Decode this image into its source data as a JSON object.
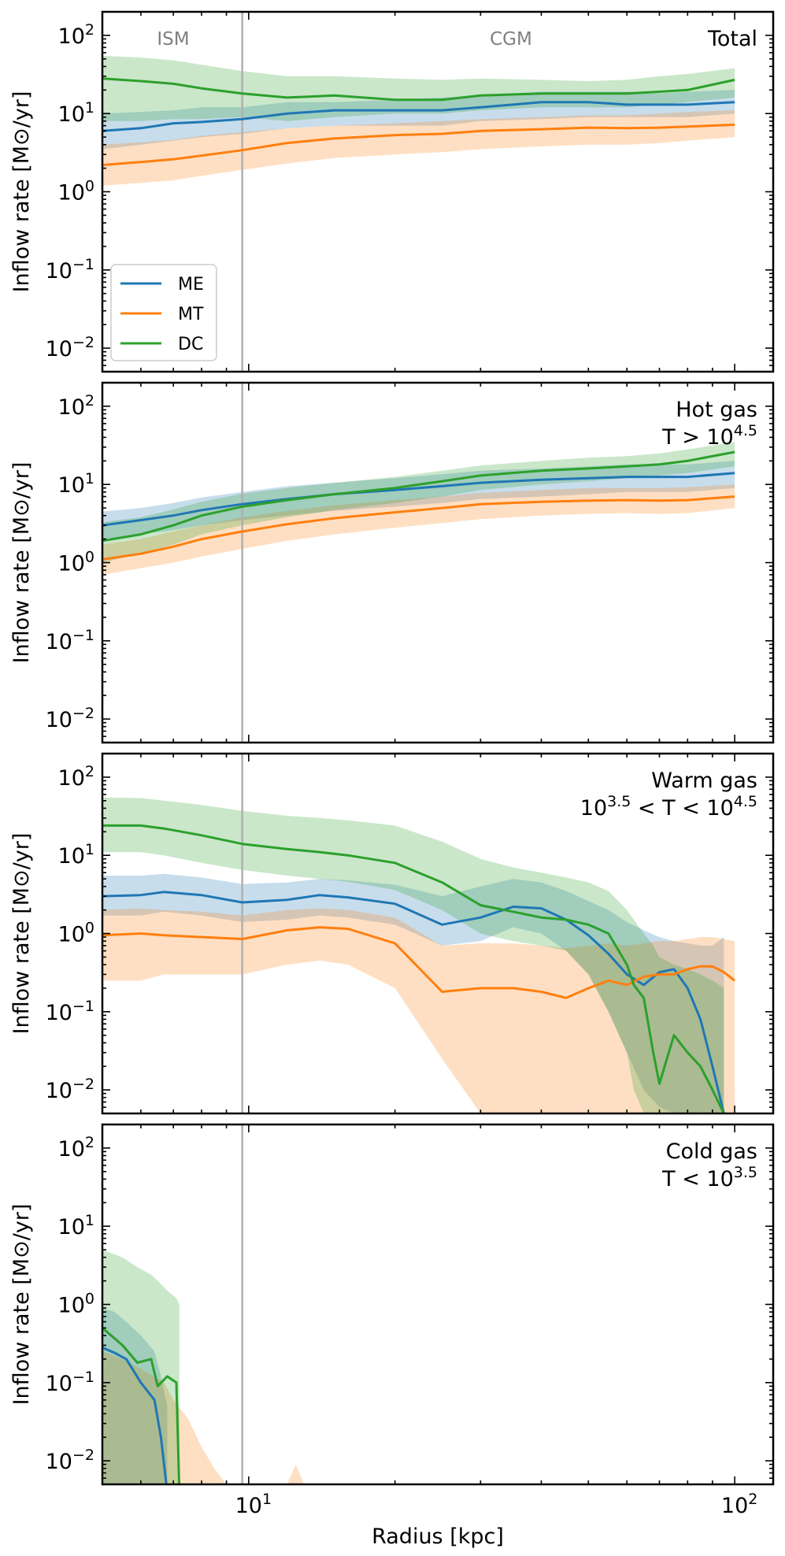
{
  "figure": {
    "xlabel": "Radius [kpc]",
    "ylabel": "Inflow rate  [M⊙/yr]",
    "region_labels": {
      "ism": "ISM",
      "cgm": "CGM"
    },
    "ism_boundary_kpc": 9.7,
    "legend": [
      {
        "name": "ME",
        "color": "#1f77b4"
      },
      {
        "name": "MT",
        "color": "#ff7f0e"
      },
      {
        "name": "DC",
        "color": "#2ca02c"
      }
    ],
    "x_ticks": [
      {
        "base": "10",
        "exp": "1",
        "value": 10
      },
      {
        "base": "10",
        "exp": "2",
        "value": 100
      }
    ],
    "y_ticks": [
      {
        "base": "10",
        "exp": "2",
        "value": 100
      },
      {
        "base": "10",
        "exp": "1",
        "value": 10
      },
      {
        "base": "10",
        "exp": "0",
        "value": 1
      },
      {
        "base": "10",
        "exp": "−1",
        "value": 0.1
      },
      {
        "base": "10",
        "exp": "−2",
        "value": 0.01
      }
    ]
  },
  "chart_data": [
    {
      "type": "line",
      "title": "Total",
      "subtitle": "",
      "xlabel": "",
      "ylabel": "Inflow rate  [M⊙/yr]",
      "xscale": "log",
      "yscale": "log",
      "xlim": [
        5,
        120
      ],
      "ylim": [
        0.005,
        200
      ],
      "legend": "lower-left",
      "series": [
        {
          "name": "ME",
          "color": "#1f77b4",
          "x": [
            5,
            6,
            7,
            8,
            9.7,
            12,
            15,
            20,
            25,
            30,
            40,
            50,
            60,
            70,
            80,
            100
          ],
          "y": [
            6,
            6.5,
            7.5,
            7.8,
            8.5,
            10,
            11,
            11,
            11,
            12,
            14,
            14,
            13,
            13,
            13,
            14
          ],
          "lower": [
            3.5,
            4,
            4.5,
            5,
            5.5,
            6.5,
            7,
            7,
            7,
            8,
            8.5,
            9,
            9,
            9,
            9,
            10
          ],
          "upper": [
            10,
            10.5,
            11,
            12,
            12,
            14,
            14,
            15,
            16,
            17,
            19,
            19,
            19,
            18,
            19,
            20
          ]
        },
        {
          "name": "MT",
          "color": "#ff7f0e",
          "x": [
            5,
            6,
            7,
            8,
            9.7,
            12,
            15,
            20,
            25,
            30,
            40,
            50,
            60,
            70,
            80,
            100
          ],
          "y": [
            2.2,
            2.4,
            2.6,
            2.9,
            3.4,
            4.2,
            4.8,
            5.3,
            5.5,
            6,
            6.3,
            6.6,
            6.5,
            6.6,
            6.8,
            7.2
          ],
          "lower": [
            1.2,
            1.3,
            1.4,
            1.6,
            1.9,
            2.3,
            2.7,
            3,
            3.2,
            3.5,
            3.8,
            4,
            4,
            4.2,
            4.5,
            5
          ],
          "upper": [
            4,
            4.3,
            4.6,
            5.2,
            5.8,
            6.5,
            7,
            7.5,
            8,
            8.5,
            9,
            9.5,
            9.5,
            10,
            10.5,
            11
          ]
        },
        {
          "name": "DC",
          "color": "#2ca02c",
          "x": [
            5,
            6,
            7,
            8,
            9.7,
            12,
            15,
            20,
            25,
            30,
            40,
            50,
            60,
            70,
            80,
            100
          ],
          "y": [
            28,
            26,
            24,
            21,
            18,
            16,
            17,
            15,
            15,
            17,
            18,
            18,
            18,
            19,
            20,
            27
          ],
          "lower": [
            8,
            8,
            8.5,
            8.5,
            9,
            8,
            9,
            10,
            10,
            11,
            12,
            12,
            12,
            13,
            14,
            16
          ],
          "upper": [
            55,
            52,
            48,
            42,
            35,
            30,
            30,
            28,
            27,
            28,
            27,
            26,
            27,
            30,
            32,
            38
          ]
        }
      ]
    },
    {
      "type": "line",
      "title": "Hot gas",
      "subtitle": "T > 10^4.5",
      "xlabel": "",
      "ylabel": "Inflow rate  [M⊙/yr]",
      "xscale": "log",
      "yscale": "log",
      "xlim": [
        5,
        120
      ],
      "ylim": [
        0.005,
        200
      ],
      "series": [
        {
          "name": "ME",
          "color": "#1f77b4",
          "x": [
            5,
            6,
            7,
            8,
            9.7,
            12,
            15,
            20,
            25,
            30,
            40,
            50,
            60,
            70,
            80,
            100
          ],
          "y": [
            3,
            3.5,
            4,
            4.7,
            5.6,
            6.5,
            7.5,
            8.5,
            9.5,
            10.5,
            11.5,
            12,
            12.5,
            12.5,
            12.5,
            14
          ],
          "lower": [
            2,
            2.3,
            2.6,
            3,
            3.5,
            4,
            4.6,
            5.2,
            5.8,
            6.5,
            7,
            7.5,
            8,
            8,
            8,
            9
          ],
          "upper": [
            4.5,
            5,
            5.8,
            6.8,
            8,
            9.5,
            10.5,
            12,
            13.5,
            15,
            16,
            17,
            18,
            18,
            18,
            20
          ]
        },
        {
          "name": "MT",
          "color": "#ff7f0e",
          "x": [
            5,
            6,
            7,
            8,
            9.7,
            12,
            15,
            20,
            25,
            30,
            40,
            50,
            60,
            70,
            80,
            100
          ],
          "y": [
            1.1,
            1.3,
            1.6,
            2,
            2.5,
            3.1,
            3.7,
            4.4,
            5,
            5.6,
            6,
            6.2,
            6.3,
            6.2,
            6.3,
            7
          ],
          "lower": [
            0.7,
            0.85,
            1,
            1.2,
            1.5,
            1.9,
            2.3,
            2.8,
            3.2,
            3.6,
            4,
            4.2,
            4.3,
            4.2,
            4.3,
            5
          ],
          "upper": [
            1.7,
            2,
            2.5,
            3,
            3.8,
            4.6,
            5.4,
            6.3,
            7,
            7.8,
            8.5,
            9,
            9,
            9,
            9.2,
            10
          ]
        },
        {
          "name": "DC",
          "color": "#2ca02c",
          "x": [
            5,
            6,
            7,
            8,
            9.7,
            12,
            15,
            20,
            25,
            30,
            40,
            50,
            60,
            70,
            80,
            100
          ],
          "y": [
            1.9,
            2.3,
            3,
            4,
            5.2,
            6.3,
            7.5,
            9,
            11,
            13,
            15,
            16,
            17,
            18,
            20,
            26
          ],
          "lower": [
            1,
            1.3,
            1.7,
            2.3,
            3,
            3.8,
            4.7,
            5.8,
            7,
            8.5,
            10,
            11,
            12,
            13,
            14,
            17
          ],
          "upper": [
            3.3,
            3.8,
            4.8,
            6,
            7.6,
            9,
            10.5,
            12.5,
            15,
            17.5,
            20,
            22,
            23,
            25,
            28,
            35
          ]
        }
      ]
    },
    {
      "type": "line",
      "title": "Warm gas",
      "subtitle": "10^3.5 < T < 10^4.5",
      "xlabel": "",
      "ylabel": "Inflow rate  [M⊙/yr]",
      "xscale": "log",
      "yscale": "log",
      "xlim": [
        5,
        120
      ],
      "ylim": [
        0.005,
        200
      ],
      "series": [
        {
          "name": "ME",
          "color": "#1f77b4",
          "x": [
            5,
            6,
            6.7,
            8,
            9.7,
            12,
            14,
            16,
            20,
            25,
            30,
            35,
            40,
            45,
            50,
            55,
            60,
            65,
            70,
            75,
            80,
            85,
            90,
            95
          ],
          "y": [
            3,
            3.1,
            3.4,
            3.1,
            2.5,
            2.7,
            3.1,
            2.9,
            2.4,
            1.3,
            1.6,
            2.2,
            2.1,
            1.5,
            0.95,
            0.55,
            0.3,
            0.22,
            0.32,
            0.35,
            0.2,
            0.08,
            0.02,
            0.005
          ],
          "lower": [
            1.7,
            1.7,
            1.9,
            1.7,
            1.4,
            1.5,
            1.7,
            1.6,
            1.3,
            0.7,
            0.8,
            1.2,
            1,
            0.6,
            0.3,
            0.1,
            0.03,
            0.01,
            0.006,
            0.005,
            0.005,
            0.005,
            0.005,
            0.005
          ],
          "upper": [
            5.5,
            5.5,
            5.8,
            5.2,
            4.3,
            4.5,
            5,
            4.8,
            4.2,
            3,
            4,
            5,
            4.5,
            3.5,
            2.6,
            2,
            1.4,
            1.1,
            0.9,
            0.8,
            0.75,
            0.7,
            0.7,
            0.9
          ]
        },
        {
          "name": "MT",
          "color": "#ff7f0e",
          "x": [
            5,
            6,
            6.7,
            8,
            9.7,
            12,
            14,
            16,
            20,
            25,
            30,
            35,
            40,
            45,
            50,
            55,
            60,
            65,
            70,
            75,
            80,
            85,
            90,
            95,
            100
          ],
          "y": [
            0.95,
            1,
            0.95,
            0.9,
            0.85,
            1.1,
            1.2,
            1.15,
            0.75,
            0.18,
            0.2,
            0.2,
            0.18,
            0.15,
            0.2,
            0.25,
            0.22,
            0.28,
            0.3,
            0.3,
            0.35,
            0.38,
            0.38,
            0.32,
            0.25
          ],
          "lower": [
            0.25,
            0.25,
            0.3,
            0.3,
            0.3,
            0.4,
            0.45,
            0.4,
            0.2,
            0.025,
            0.005,
            0.005,
            0.005,
            0.005,
            0.005,
            0.005,
            0.005,
            0.005,
            0.005,
            0.005,
            0.005,
            0.005,
            0.005,
            0.005,
            0.005
          ],
          "upper": [
            2,
            2.1,
            2,
            1.9,
            1.7,
            2,
            2.1,
            2,
            1.6,
            0.7,
            0.75,
            0.75,
            0.7,
            0.65,
            0.7,
            0.75,
            0.7,
            0.75,
            0.8,
            0.8,
            0.85,
            0.9,
            0.9,
            0.85,
            0.8
          ]
        },
        {
          "name": "DC",
          "color": "#2ca02c",
          "x": [
            5,
            6,
            6.7,
            8,
            9.7,
            12,
            14,
            16,
            20,
            25,
            30,
            35,
            40,
            45,
            50,
            55,
            60,
            62,
            65,
            68,
            70,
            75,
            80,
            85,
            90,
            95
          ],
          "y": [
            24,
            24,
            22,
            18,
            14,
            12,
            11,
            10,
            8,
            4.5,
            2.3,
            1.9,
            1.6,
            1.5,
            1.3,
            1,
            0.4,
            0.22,
            0.15,
            0.03,
            0.012,
            0.05,
            0.03,
            0.02,
            0.01,
            0.005
          ],
          "lower": [
            11,
            11,
            10,
            8,
            6.5,
            5.5,
            5,
            4.6,
            3.6,
            2,
            1,
            0.8,
            0.7,
            0.6,
            0.3,
            0.1,
            0.03,
            0.01,
            0.005,
            0.005,
            0.005,
            0.005,
            0.005,
            0.005,
            0.005,
            0.005
          ],
          "upper": [
            55,
            54,
            50,
            44,
            37,
            32,
            30,
            28,
            24,
            15,
            9,
            7,
            6,
            5.2,
            4.5,
            3.5,
            2,
            1.5,
            1,
            0.7,
            0.5,
            0.4,
            0.35,
            0.3,
            0.25,
            0.2
          ]
        }
      ]
    },
    {
      "type": "line",
      "title": "Cold gas",
      "subtitle": "T < 10^3.5",
      "xlabel": "Radius [kpc]",
      "ylabel": "Inflow rate  [M⊙/yr]",
      "xscale": "log",
      "yscale": "log",
      "xlim": [
        5,
        120
      ],
      "ylim": [
        0.005,
        200
      ],
      "series": [
        {
          "name": "ME",
          "color": "#1f77b4",
          "x": [
            5,
            5.3,
            5.6,
            6,
            6.4,
            6.6,
            6.8
          ],
          "y": [
            0.28,
            0.24,
            0.2,
            0.1,
            0.06,
            0.02,
            0.004
          ],
          "lower": [
            0.005,
            0.005,
            0.005,
            0.005,
            0.005,
            0.005,
            0.005
          ],
          "upper": [
            0.9,
            0.8,
            0.6,
            0.4,
            0.25,
            0.12,
            0.05
          ]
        },
        {
          "name": "MT",
          "color": "#ff7f0e",
          "x": [
            5,
            5.5,
            6,
            6.7,
            7,
            7.5,
            8,
            8.5,
            9,
            9.5,
            10.5,
            11.5,
            12,
            12.5,
            13,
            13.5,
            14,
            14.5,
            15,
            16,
            20,
            30,
            40,
            60,
            80,
            100
          ],
          "y": [
            null,
            null,
            null,
            null,
            null,
            null,
            null,
            null,
            null,
            null,
            null,
            null,
            null,
            null,
            null,
            null,
            null,
            null,
            null,
            null,
            null,
            null,
            null,
            null,
            null,
            null
          ],
          "lower": [
            0.005,
            0.005,
            0.005,
            0.005,
            0.005,
            0.005,
            0.005,
            0.005,
            0.005,
            0.005,
            0.005,
            0.005,
            0.005,
            0.005,
            0.005,
            0.005,
            0.005,
            0.005,
            0.005,
            0.005,
            0.005,
            0.005,
            0.005,
            0.005,
            0.005,
            0.005
          ],
          "upper": [
            0.25,
            0.2,
            0.15,
            0.1,
            0.06,
            0.035,
            0.015,
            0.008,
            0.005,
            0.005,
            0.005,
            0.005,
            0.005,
            0.009,
            0.005,
            0.005,
            0.005,
            0.005,
            0.005,
            0.005,
            0.005,
            0.005,
            0.005,
            0.005,
            0.005,
            0.005
          ]
        },
        {
          "name": "DC",
          "color": "#2ca02c",
          "x": [
            5,
            5.5,
            5.9,
            6.3,
            6.5,
            6.8,
            7.1,
            7.2
          ],
          "y": [
            0.5,
            0.3,
            0.18,
            0.2,
            0.09,
            0.12,
            0.1,
            0.004
          ],
          "lower": [
            0.005,
            0.005,
            0.005,
            0.005,
            0.005,
            0.005,
            0.005,
            0.005
          ],
          "upper": [
            5,
            4,
            3,
            2.4,
            2,
            1.5,
            1.2,
            1
          ]
        }
      ]
    }
  ]
}
